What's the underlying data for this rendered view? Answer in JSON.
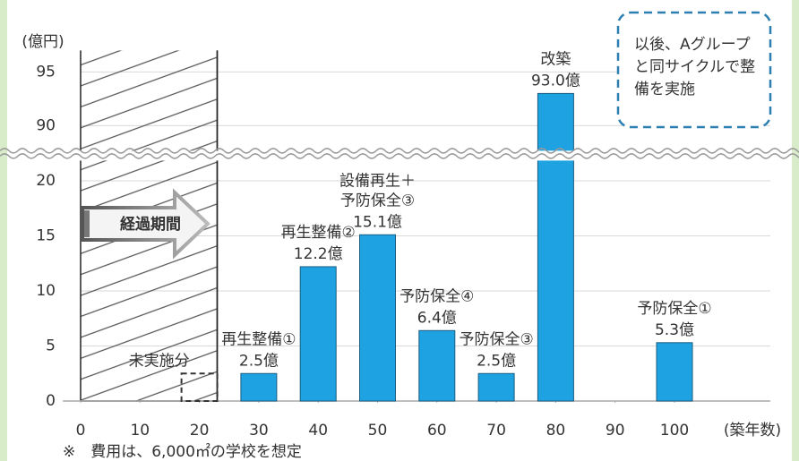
{
  "chart_data": {
    "type": "bar",
    "y_label": "(億円)",
    "x_label": "(築年数)",
    "x": [
      20,
      30,
      40,
      50,
      60,
      70,
      80,
      100
    ],
    "values": [
      2.5,
      2.5,
      12.2,
      15.1,
      6.4,
      2.5,
      93.0,
      5.3
    ],
    "value_labels": [
      null,
      "2.5億",
      "12.2億",
      "15.1億",
      "6.4億",
      "2.5億",
      "93.0億",
      "5.3億"
    ],
    "bar_names": [
      [
        "未実施分"
      ],
      [
        "再生整備①"
      ],
      [
        "再生整備②"
      ],
      [
        "設備再生＋",
        "予防保全③"
      ],
      [
        "予防保全④"
      ],
      [
        "予防保全③"
      ],
      [
        "改築"
      ],
      [
        "予防保全①"
      ]
    ],
    "bar_styles": [
      "dashed",
      "solid",
      "solid",
      "solid",
      "solid",
      "solid",
      "solid",
      "solid"
    ],
    "color": "#1ea2e1",
    "xlim": [
      0,
      106
    ],
    "xticks": [
      0,
      10,
      20,
      30,
      40,
      50,
      60,
      70,
      80,
      90,
      100
    ],
    "ylim": [
      0,
      97
    ],
    "axis_break": [
      22,
      87.5
    ],
    "yticks": [
      0,
      5,
      10,
      15,
      20,
      90,
      95
    ],
    "grid": true,
    "elapsed_years": 23,
    "elapsed_label": "経過期間",
    "note_lines": [
      "以後、Aグループ",
      "と同サイクルで整",
      "備を実施"
    ],
    "footnote": "※　費用は、6,000㎡の学校を想定"
  }
}
